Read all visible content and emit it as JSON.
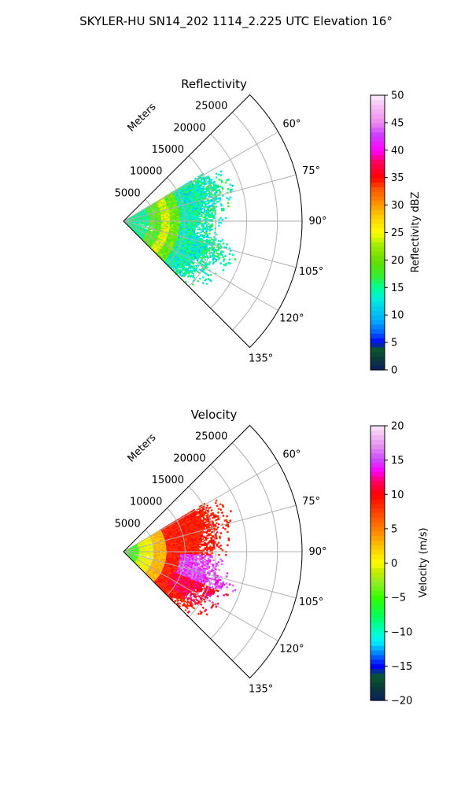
{
  "figure": {
    "suptitle": "SKYLER-HU  SN14_202  1114_2.225 UTC Elevation 16°"
  },
  "chart_data": [
    {
      "type": "heatmap",
      "title": "Reflectivity",
      "projection": "polar-sector",
      "radial_axis_label": "Meters",
      "r_ticks": [
        5000,
        10000,
        15000,
        20000,
        25000
      ],
      "r_tick_labels": [
        "5000",
        "10000",
        "15000",
        "20000",
        "25000"
      ],
      "r_lim": [
        0,
        29000
      ],
      "theta_ticks_deg": [
        60,
        75,
        90,
        105,
        120,
        135
      ],
      "theta_tick_labels": [
        "60°",
        "75°",
        "90°",
        "105°",
        "120°",
        "135°"
      ],
      "theta_lim_deg": [
        45,
        135
      ],
      "grid": true,
      "data_extent": {
        "theta_deg": [
          59,
          135
        ],
        "r_max_m_by_theta": [
          [
            59,
            15000
          ],
          [
            70,
            16500
          ],
          [
            82,
            15000
          ],
          [
            98,
            14000
          ],
          [
            108,
            17000
          ],
          [
            118,
            15500
          ],
          [
            128,
            14500
          ],
          [
            135,
            12500
          ]
        ]
      },
      "colorbar": {
        "label": "Reflectivity dBZ",
        "range": [
          0,
          50
        ],
        "ticks": [
          0,
          5,
          10,
          15,
          20,
          25,
          30,
          35,
          40,
          45,
          50
        ],
        "tick_labels": [
          "0",
          "5",
          "10",
          "15",
          "20",
          "25",
          "30",
          "35",
          "40",
          "45",
          "50"
        ]
      }
    },
    {
      "type": "heatmap",
      "title": "Velocity",
      "projection": "polar-sector",
      "radial_axis_label": "Meters",
      "r_ticks": [
        5000,
        10000,
        15000,
        20000,
        25000
      ],
      "r_tick_labels": [
        "5000",
        "10000",
        "15000",
        "20000",
        "25000"
      ],
      "r_lim": [
        0,
        29000
      ],
      "theta_ticks_deg": [
        60,
        75,
        90,
        105,
        120,
        135
      ],
      "theta_tick_labels": [
        "60°",
        "75°",
        "90°",
        "105°",
        "120°",
        "135°"
      ],
      "theta_lim_deg": [
        45,
        135
      ],
      "grid": true,
      "data_extent": {
        "theta_deg": [
          59,
          135
        ],
        "r_max_m_by_theta": [
          [
            59,
            15000
          ],
          [
            70,
            16500
          ],
          [
            82,
            15000
          ],
          [
            98,
            14000
          ],
          [
            108,
            17000
          ],
          [
            118,
            15500
          ],
          [
            128,
            14500
          ],
          [
            135,
            12500
          ]
        ]
      },
      "colorbar": {
        "label": "Velocity (m/s)",
        "range": [
          -20,
          20
        ],
        "ticks": [
          -20,
          -15,
          -10,
          -5,
          0,
          5,
          10,
          15,
          20
        ],
        "tick_labels": [
          "−20",
          "−15",
          "−10",
          "−5",
          "0",
          "5",
          "10",
          "15",
          "20"
        ]
      }
    }
  ]
}
